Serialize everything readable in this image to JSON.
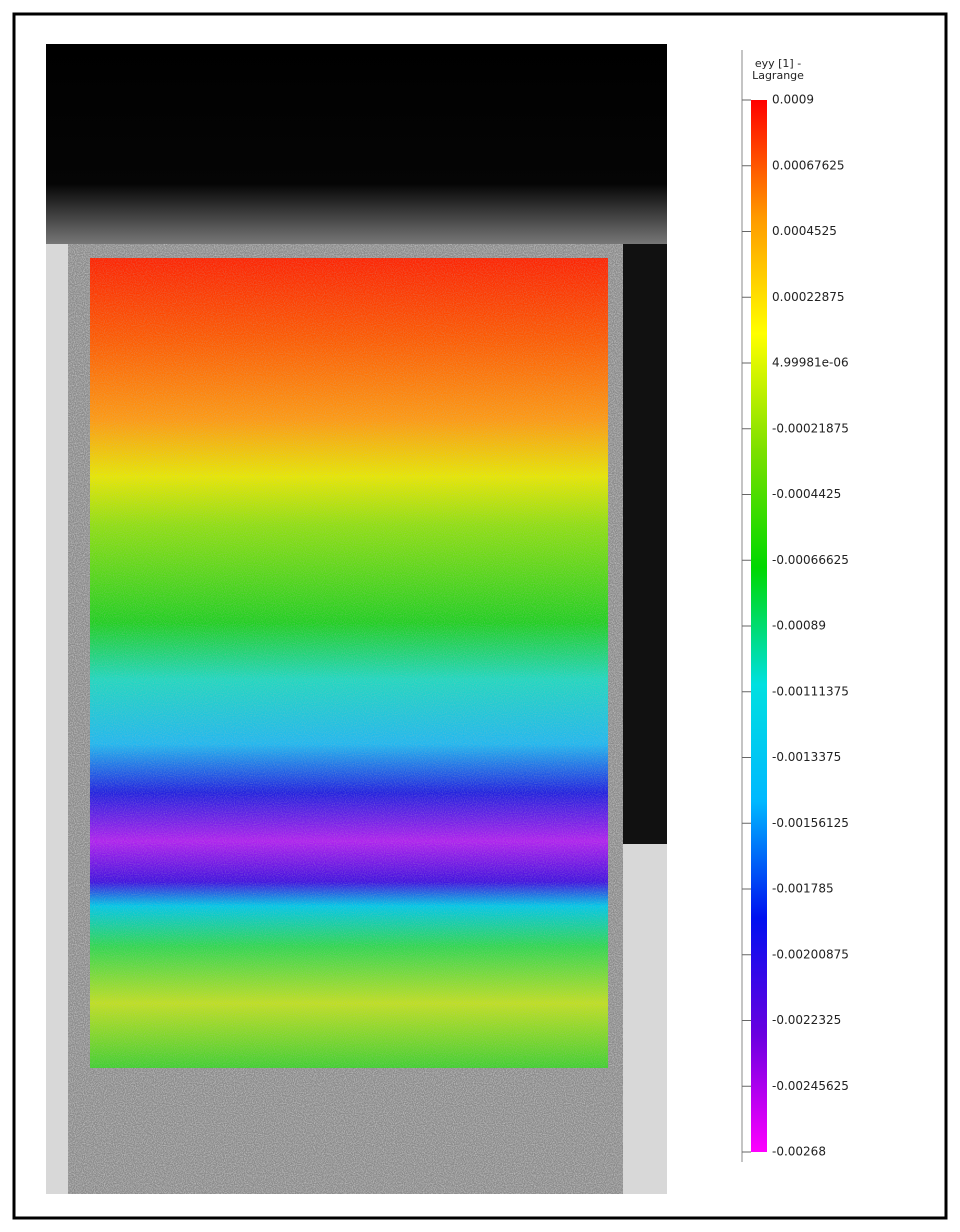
{
  "chart_data": {
    "type": "colorbar",
    "title": "eyy [1] - Lagrange",
    "clim": [
      -0.00268,
      0.0009
    ],
    "colormap": [
      "#ff00ff",
      "#6a00e0",
      "#0010f0",
      "#00b8ff",
      "#00e0e0",
      "#00d800",
      "#7ce000",
      "#ffff00",
      "#ff9900",
      "#ff0000"
    ],
    "ticks": [
      0.0009,
      0.00067625,
      0.0004525,
      0.00022875,
      {
        "value": 4.99981e-06,
        "label": "4.99981e-06"
      },
      -0.00021875,
      -0.0004425,
      -0.00066625,
      -0.00089,
      -0.00111375,
      -0.0013375,
      -0.00156125,
      -0.001785,
      -0.00200875,
      -0.0022325,
      -0.00245625,
      -0.00268
    ]
  }
}
